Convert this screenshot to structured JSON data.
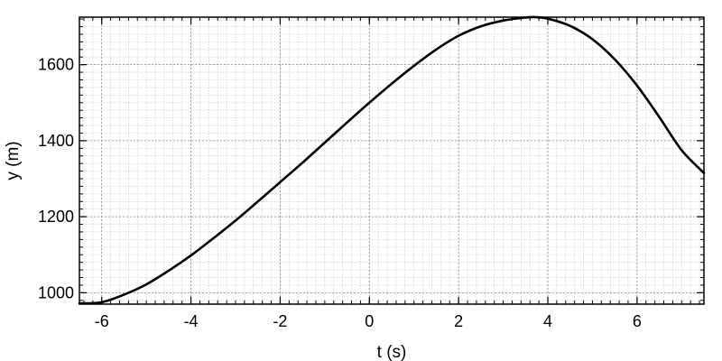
{
  "chart_data": {
    "type": "line",
    "title": "",
    "xlabel": "t (s)",
    "ylabel": "y (m)",
    "xlim": [
      -6.5,
      7.5
    ],
    "ylim": [
      970,
      1725
    ],
    "xticks": [
      -6,
      -4,
      -2,
      0,
      2,
      4,
      6
    ],
    "yticks": [
      1000,
      1200,
      1400,
      1600
    ],
    "x_minor_step": 0.2,
    "y_minor_step": 20,
    "grid": true,
    "legend": "none",
    "series": [
      {
        "color": "#000000",
        "x": [
          -6.5,
          -6.0,
          -5.5,
          -5.0,
          -4.5,
          -4.0,
          -3.5,
          -3.0,
          -2.5,
          -2.0,
          -1.5,
          -1.0,
          -0.5,
          0.0,
          0.5,
          1.0,
          1.5,
          2.0,
          2.5,
          3.0,
          3.5,
          3.7,
          4.0,
          4.5,
          5.0,
          5.5,
          6.0,
          6.5,
          7.0,
          7.5
        ],
        "y": [
          972,
          975,
          995,
          1022,
          1058,
          1098,
          1143,
          1190,
          1240,
          1291,
          1342,
          1395,
          1448,
          1500,
          1550,
          1597,
          1640,
          1676,
          1701,
          1716,
          1724,
          1725,
          1721,
          1702,
          1667,
          1614,
          1545,
          1462,
          1375,
          1315
        ]
      }
    ]
  }
}
